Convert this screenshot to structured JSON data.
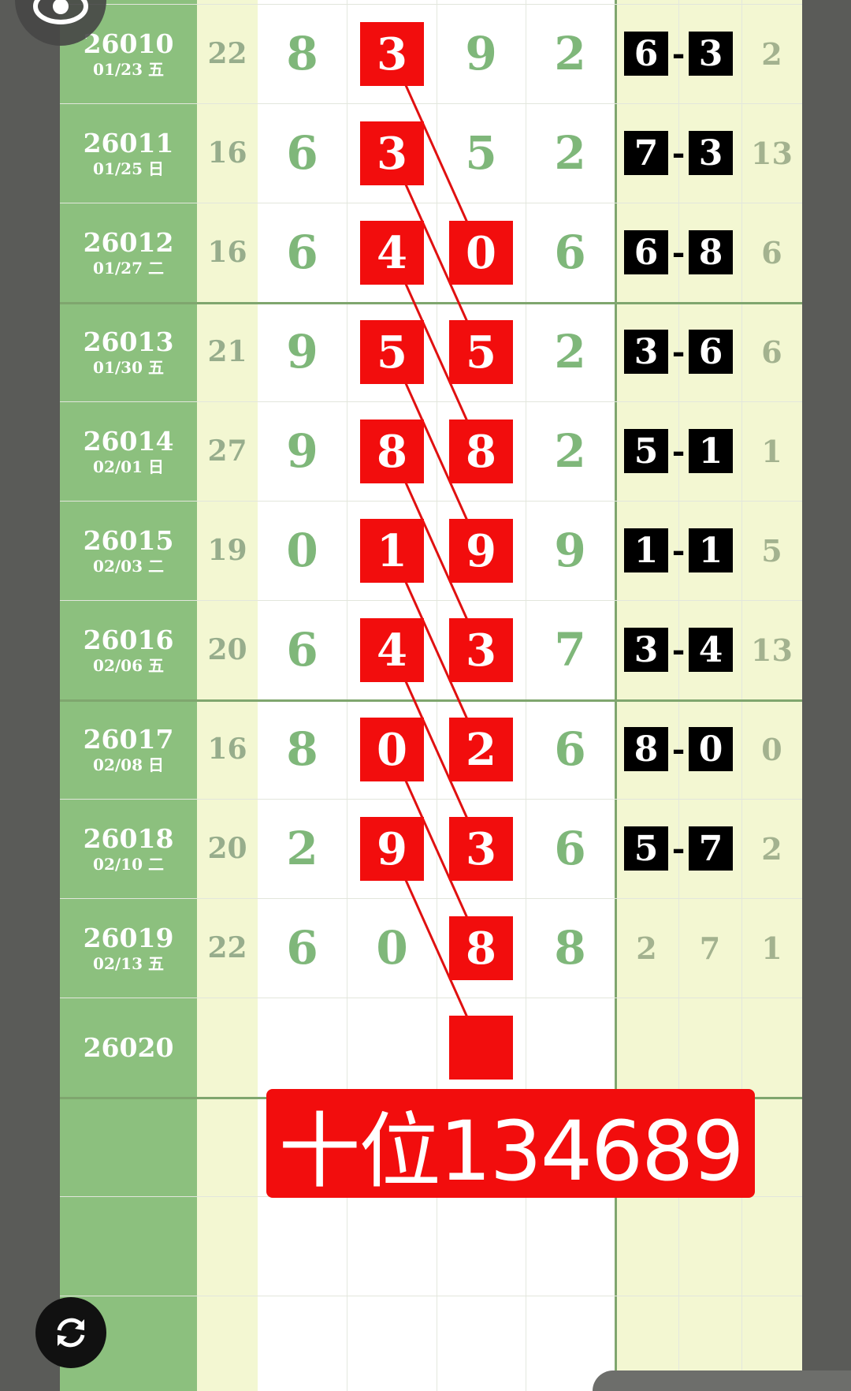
{
  "banner": "十位134689",
  "colors": {
    "red": "#f20d0d",
    "green": "#8cc07e",
    "digit_green": "#7fb77a",
    "yellow": "#f3f7d2"
  },
  "icons": {
    "top_left": "eye-icon",
    "bottom_left": "refresh-icon"
  },
  "rows": [
    {
      "issue": "26010",
      "date": "01/23 五",
      "sum": "22",
      "d": [
        "8",
        "3",
        "9",
        "2"
      ],
      "red": [
        false,
        true,
        false,
        false
      ],
      "pair": [
        "6",
        "3"
      ],
      "span": "2"
    },
    {
      "issue": "26011",
      "date": "01/25 日",
      "sum": "16",
      "d": [
        "6",
        "3",
        "5",
        "2"
      ],
      "red": [
        false,
        true,
        false,
        false
      ],
      "pair": [
        "7",
        "3"
      ],
      "span": "13"
    },
    {
      "issue": "26012",
      "date": "01/27 二",
      "sum": "16",
      "d": [
        "6",
        "4",
        "0",
        "6"
      ],
      "red": [
        false,
        true,
        true,
        false
      ],
      "pair": [
        "6",
        "8"
      ],
      "span": "6"
    },
    {
      "issue": "26013",
      "date": "01/30 五",
      "sum": "21",
      "d": [
        "9",
        "5",
        "5",
        "2"
      ],
      "red": [
        false,
        true,
        true,
        false
      ],
      "pair": [
        "3",
        "6"
      ],
      "span": "6"
    },
    {
      "issue": "26014",
      "date": "02/01 日",
      "sum": "27",
      "d": [
        "9",
        "8",
        "8",
        "2"
      ],
      "red": [
        false,
        true,
        true,
        false
      ],
      "pair": [
        "5",
        "1"
      ],
      "span": "1"
    },
    {
      "issue": "26015",
      "date": "02/03 二",
      "sum": "19",
      "d": [
        "0",
        "1",
        "9",
        "9"
      ],
      "red": [
        false,
        true,
        true,
        false
      ],
      "pair": [
        "1",
        "1"
      ],
      "span": "5"
    },
    {
      "issue": "26016",
      "date": "02/06 五",
      "sum": "20",
      "d": [
        "6",
        "4",
        "3",
        "7"
      ],
      "red": [
        false,
        true,
        true,
        false
      ],
      "pair": [
        "3",
        "4"
      ],
      "span": "13"
    },
    {
      "issue": "26017",
      "date": "02/08 日",
      "sum": "16",
      "d": [
        "8",
        "0",
        "2",
        "6"
      ],
      "red": [
        false,
        true,
        true,
        false
      ],
      "pair": [
        "8",
        "0"
      ],
      "span": "0"
    },
    {
      "issue": "26018",
      "date": "02/10 二",
      "sum": "20",
      "d": [
        "2",
        "9",
        "3",
        "6"
      ],
      "red": [
        false,
        true,
        true,
        false
      ],
      "pair": [
        "5",
        "7"
      ],
      "span": "2"
    },
    {
      "issue": "26019",
      "date": "02/13 五",
      "sum": "22",
      "d": [
        "6",
        "0",
        "8",
        "8"
      ],
      "red": [
        false,
        false,
        true,
        false
      ],
      "plain": [
        "2",
        "7",
        "1"
      ]
    },
    {
      "issue": "26020",
      "date": "",
      "sum": "",
      "d": [
        "",
        "",
        "",
        ""
      ],
      "red": [
        false,
        false,
        true,
        false
      ]
    }
  ]
}
